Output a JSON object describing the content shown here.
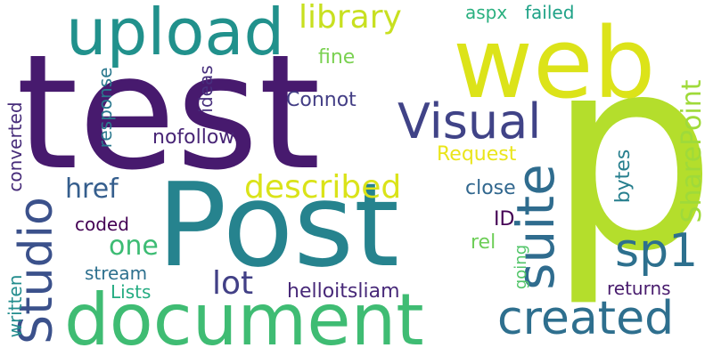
{
  "words": [
    {
      "text": "test",
      "color": "#471a6e",
      "vertical": false
    },
    {
      "text": "p",
      "color": "#b4de2c",
      "vertical": false
    },
    {
      "text": "Post",
      "color": "#26838e",
      "vertical": false
    },
    {
      "text": "web",
      "color": "#dce319",
      "vertical": false
    },
    {
      "text": "document",
      "color": "#3fbc73",
      "vertical": false
    },
    {
      "text": "upload",
      "color": "#21918c",
      "vertical": false
    },
    {
      "text": "Visual",
      "color": "#404387",
      "vertical": false
    },
    {
      "text": "suite",
      "color": "#2f6c8e",
      "vertical": true
    },
    {
      "text": "created",
      "color": "#2e6f8e",
      "vertical": false
    },
    {
      "text": "Studio",
      "color": "#3b518b",
      "vertical": true
    },
    {
      "text": "sp1",
      "color": "#2d708e",
      "vertical": false
    },
    {
      "text": "library",
      "color": "#c8e020",
      "vertical": false
    },
    {
      "text": "SharePoint",
      "color": "#9fda3a",
      "vertical": true
    },
    {
      "text": "described",
      "color": "#dae319",
      "vertical": false
    },
    {
      "text": "lot",
      "color": "#424086",
      "vertical": false
    },
    {
      "text": "href",
      "color": "#355e8d",
      "vertical": false
    },
    {
      "text": "one",
      "color": "#3dbc74",
      "vertical": false
    },
    {
      "text": "aspx",
      "color": "#2ab07f",
      "vertical": false
    },
    {
      "text": "failed",
      "color": "#1fa287",
      "vertical": false
    },
    {
      "text": "fine",
      "color": "#7ad151",
      "vertical": false
    },
    {
      "text": "ideas",
      "color": "#472f7d",
      "vertical": true
    },
    {
      "text": "Connot",
      "color": "#433e85",
      "vertical": false
    },
    {
      "text": "response",
      "color": "#2a788e",
      "vertical": true
    },
    {
      "text": "converted",
      "color": "#472c7a",
      "vertical": true
    },
    {
      "text": "nofollow",
      "color": "#482576",
      "vertical": false
    },
    {
      "text": "Request",
      "color": "#eae51a",
      "vertical": false
    },
    {
      "text": "bytes",
      "color": "#277f8e",
      "vertical": true
    },
    {
      "text": "close",
      "color": "#31678e",
      "vertical": false
    },
    {
      "text": "coded",
      "color": "#440154",
      "vertical": false
    },
    {
      "text": "ID",
      "color": "#440154",
      "vertical": false
    },
    {
      "text": "written",
      "color": "#228c8d",
      "vertical": true
    },
    {
      "text": "rel",
      "color": "#6ece58",
      "vertical": false
    },
    {
      "text": "going",
      "color": "#52c569",
      "vertical": true
    },
    {
      "text": "stream",
      "color": "#2d708e",
      "vertical": false
    },
    {
      "text": "Lists",
      "color": "#25ac82",
      "vertical": false
    },
    {
      "text": "helloitsliam",
      "color": "#482979",
      "vertical": false
    },
    {
      "text": "returns",
      "color": "#481b6d",
      "vertical": false
    }
  ]
}
